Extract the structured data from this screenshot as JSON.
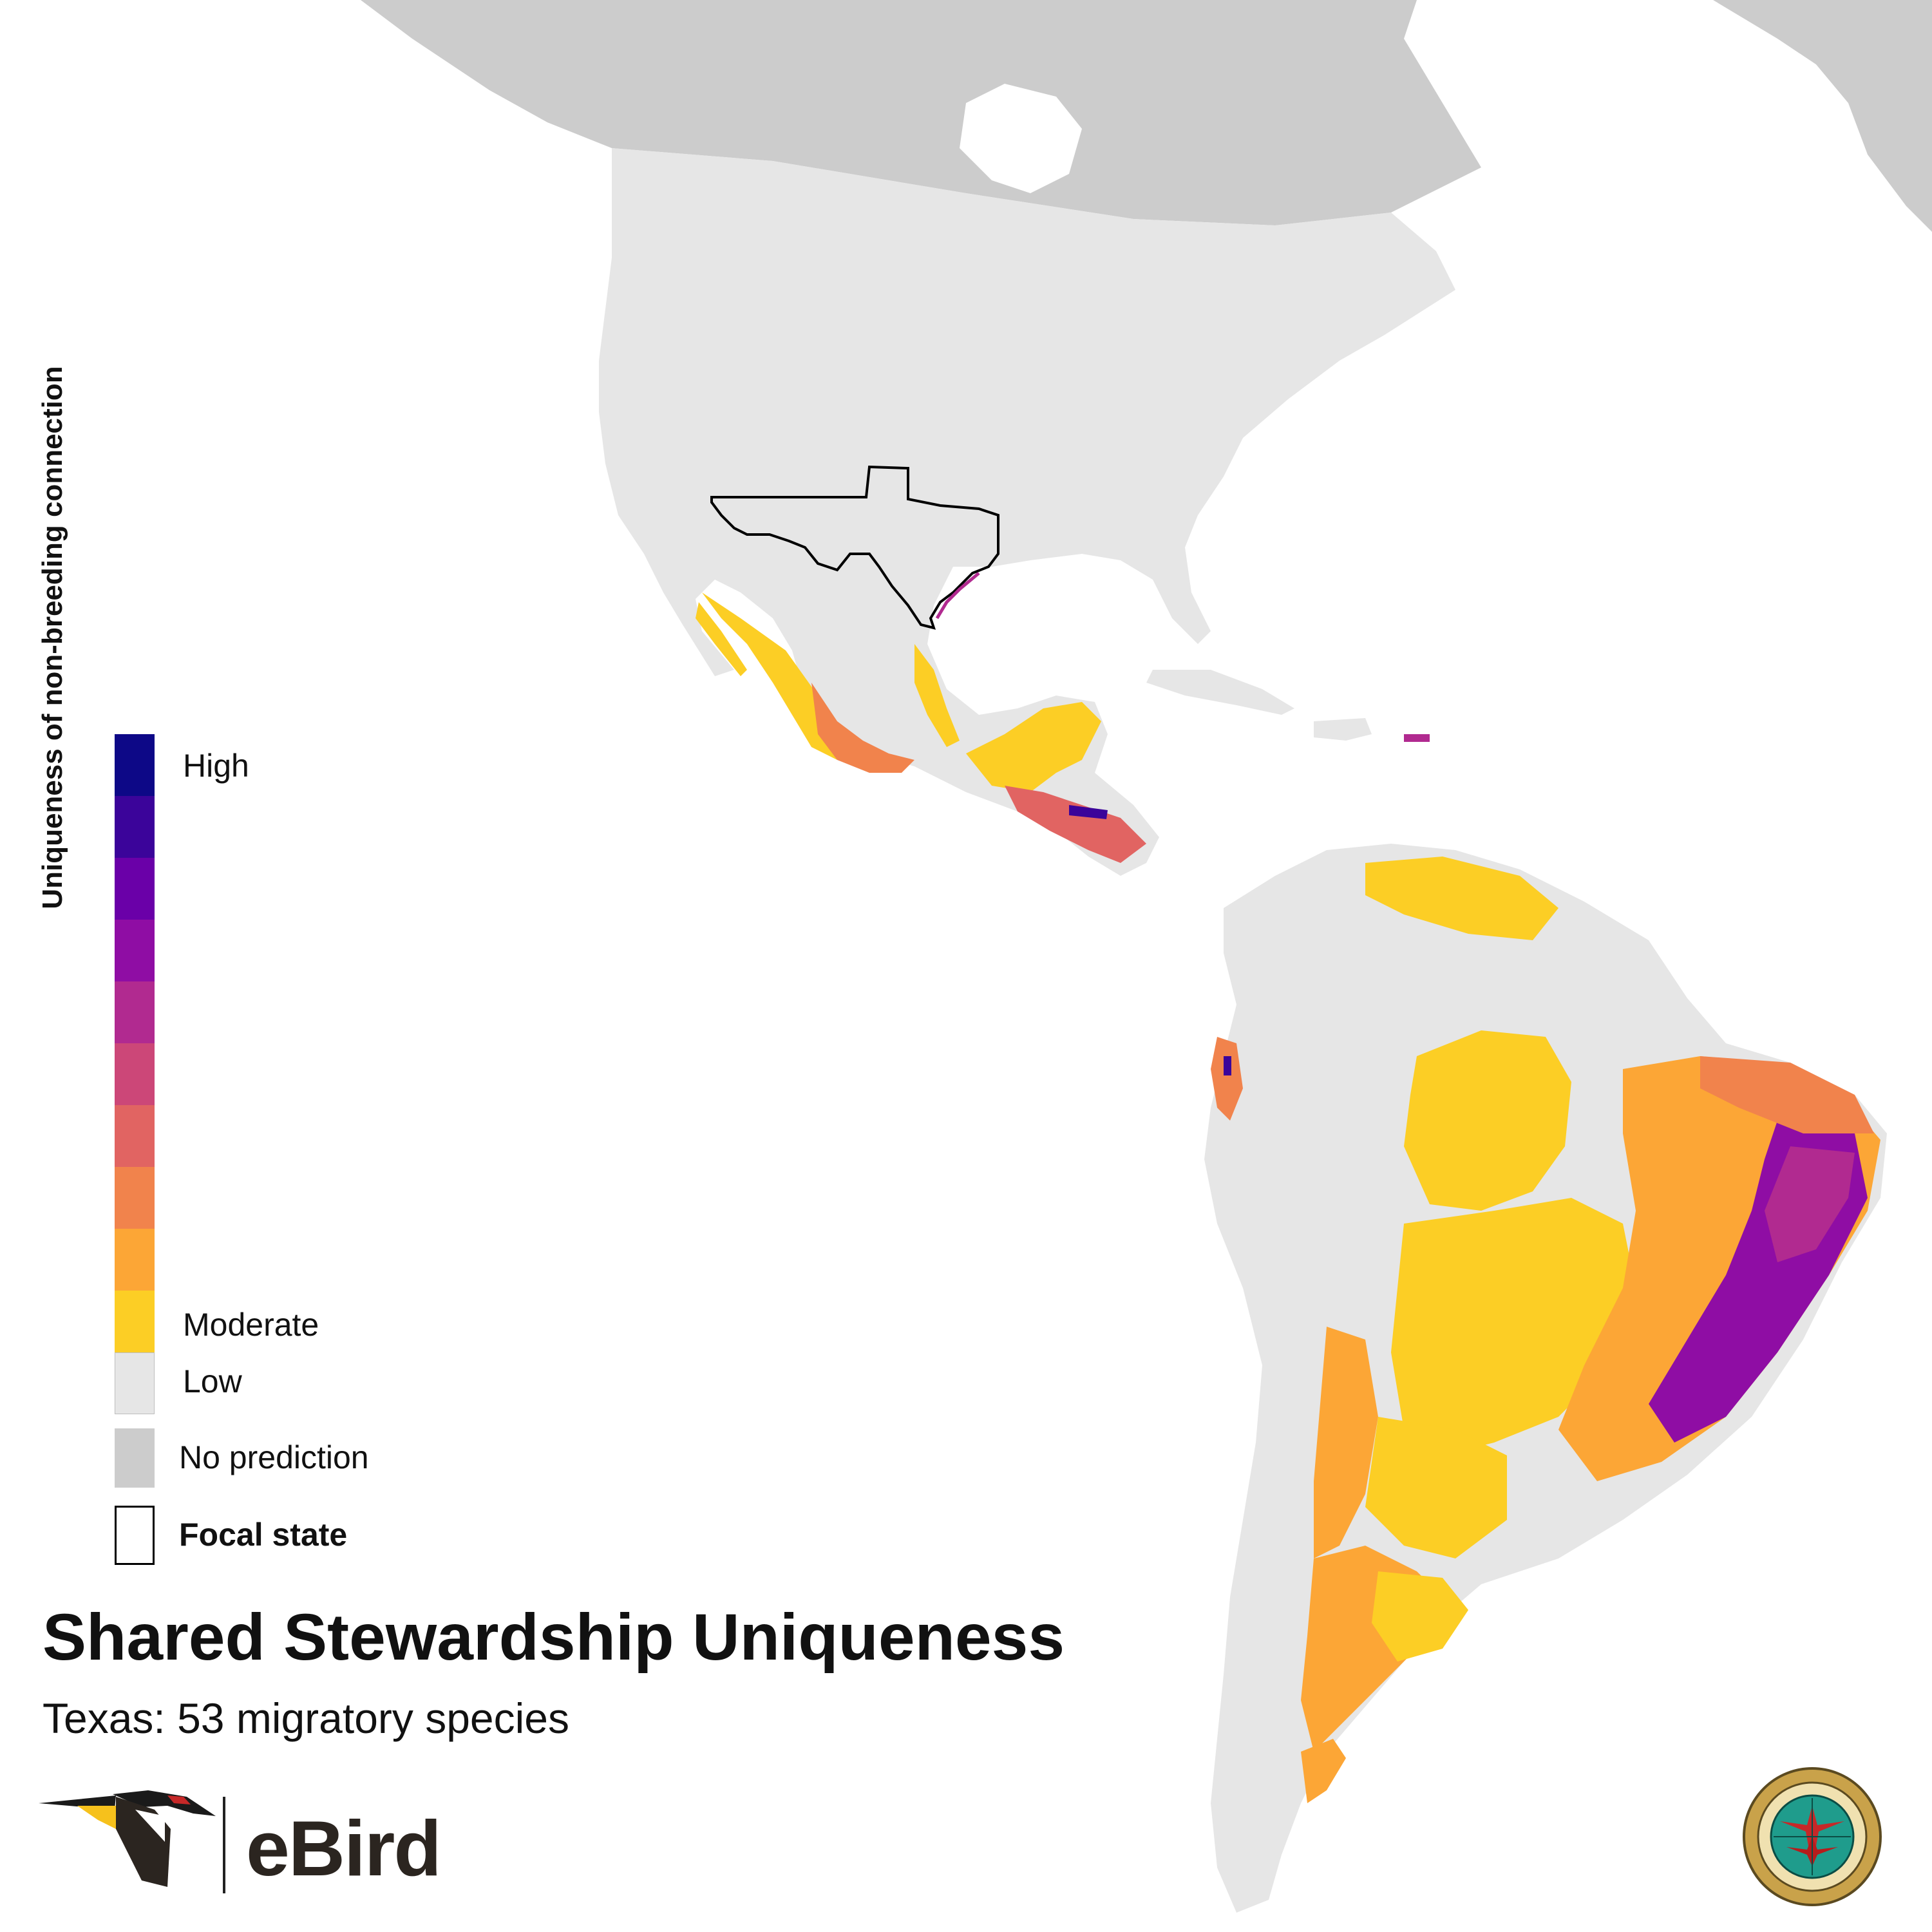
{
  "title": "Shared Stewardship Uniqueness",
  "subtitle": "Texas: 53 migratory species",
  "legend": {
    "axis_title": "Uniqueness of non-breeding connection",
    "high_label": "High",
    "moderate_label": "Moderate",
    "low_label": "Low",
    "no_prediction_label": "No prediction",
    "focal_state_label": "Focal state",
    "scale_colors": [
      "#0d0887",
      "#3b049a",
      "#6a00a8",
      "#8f0da4",
      "#b12a90",
      "#cc4778",
      "#e16462",
      "#f1834c",
      "#fca636",
      "#fcce25"
    ],
    "low_color": "#e6e6e6",
    "no_prediction_color": "#cccccc",
    "focal_state_color": "#000000"
  },
  "logos": {
    "ebird_wordmark": "eBird",
    "ebird_icon": "woodpecker-icon",
    "pif_seal": "partners-in-flight-seal",
    "pif_seal_text": "PARTNERS IN FLIGHT · COMPAÑEROS EN VUELO · PARTENAIRES D'ENVOL"
  },
  "colors": {
    "land_predicted": "#e6e6e6",
    "land_no_prediction": "#cccccc",
    "water": "#ffffff",
    "ebird_green": "#3a8a3c"
  }
}
